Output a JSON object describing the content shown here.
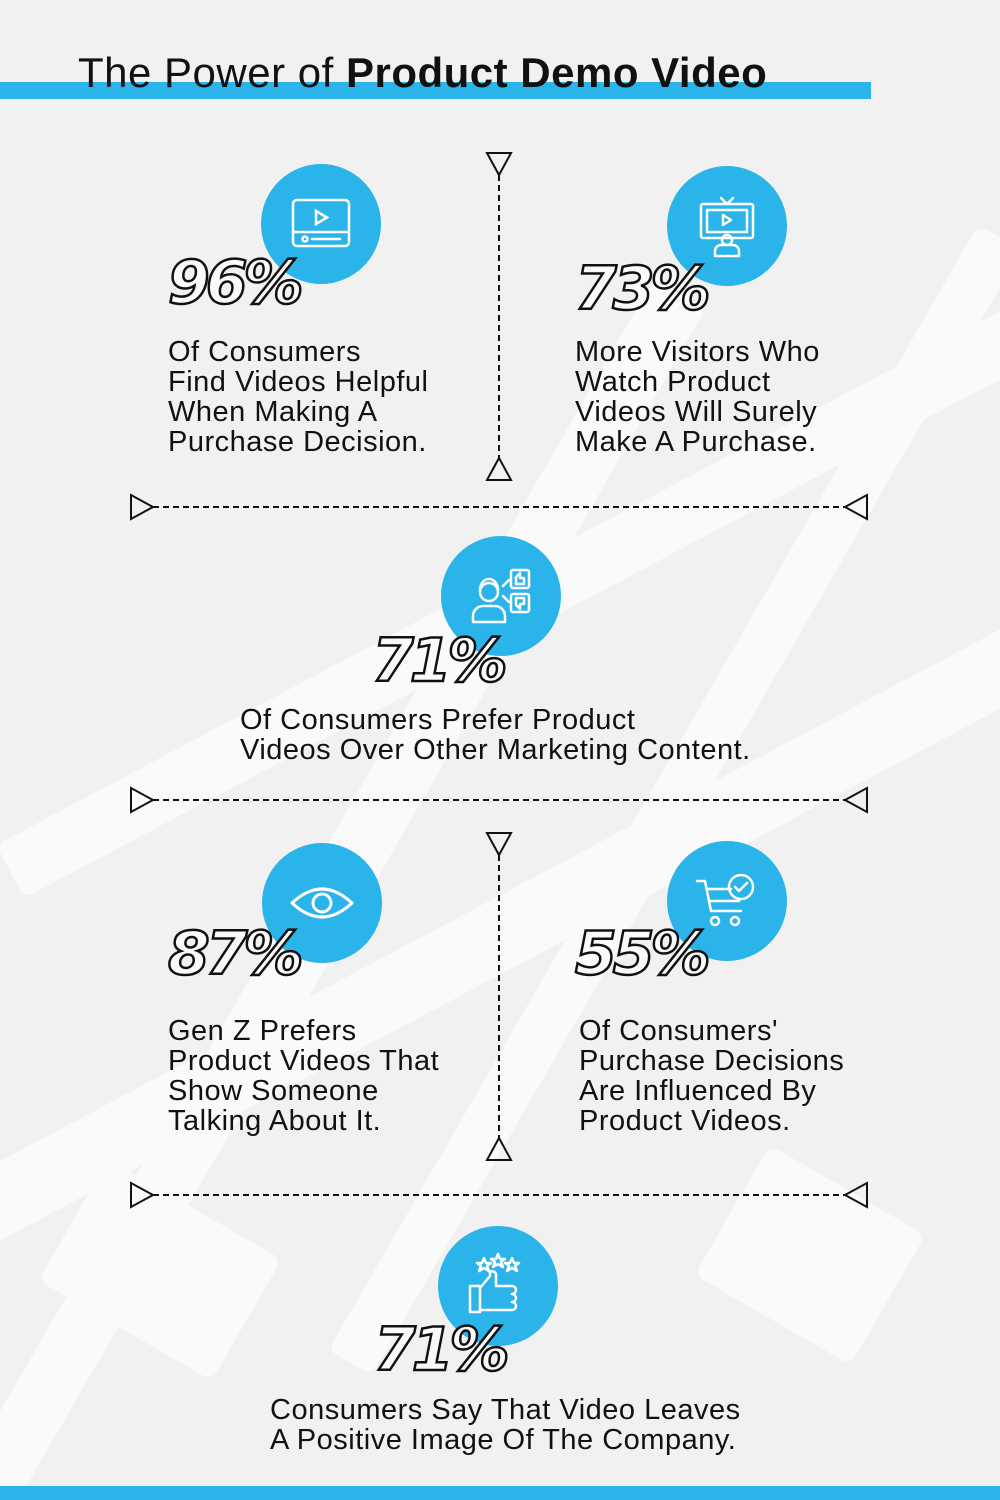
{
  "title": {
    "prefix": "The Power of",
    "bold": "Product Demo Video"
  },
  "colors": {
    "accent": "#2bb4ea",
    "background": "#f1f1f1",
    "text": "#111111"
  },
  "stats": [
    {
      "value": "96%",
      "icon": "video-player-icon",
      "lines": [
        "Of Consumers",
        "Find Videos Helpful",
        "When Making A",
        "Purchase Decision."
      ]
    },
    {
      "value": "73%",
      "icon": "monitor-presenter-icon",
      "lines": [
        "More Visitors Who",
        "Watch Product",
        "Videos Will Surely",
        "Make A Purchase."
      ]
    },
    {
      "value": "71%",
      "icon": "person-feedback-icon",
      "lines": [
        "Of Consumers Prefer Product",
        "Videos Over Other Marketing Content."
      ]
    },
    {
      "value": "87%",
      "icon": "eye-icon",
      "lines": [
        "Gen Z Prefers",
        "Product Videos That",
        "Show Someone",
        "Talking About It."
      ]
    },
    {
      "value": "55%",
      "icon": "cart-check-icon",
      "lines": [
        "Of Consumers'",
        "Purchase Decisions",
        "Are Influenced By",
        "Product Videos."
      ]
    },
    {
      "value": "71%",
      "icon": "thumbs-up-stars-icon",
      "lines": [
        "Consumers Say That Video Leaves",
        "A Positive Image Of The Company."
      ]
    }
  ]
}
